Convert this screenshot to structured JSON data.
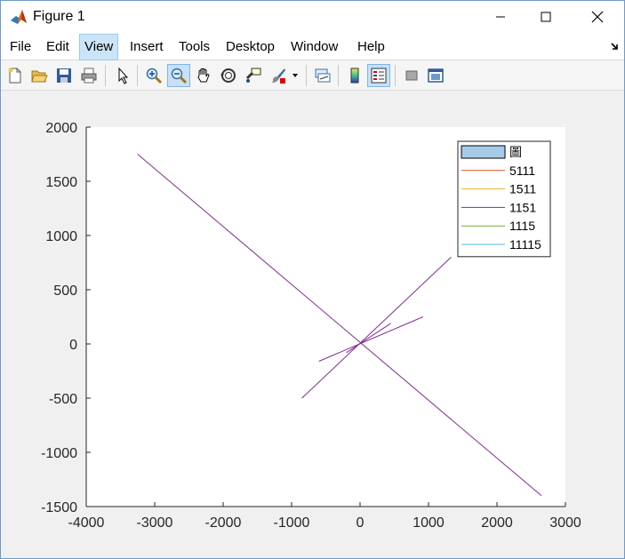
{
  "window": {
    "title": "Figure 1",
    "accent": "#6f9ac9"
  },
  "menu": {
    "items": [
      {
        "label": "File",
        "active": false
      },
      {
        "label": "Edit",
        "active": false
      },
      {
        "label": "View",
        "active": true
      },
      {
        "label": "Insert",
        "active": false
      },
      {
        "label": "Tools",
        "active": false
      },
      {
        "label": "Desktop",
        "active": false
      },
      {
        "label": "Window",
        "active": false
      },
      {
        "label": "Help",
        "active": false
      }
    ],
    "overflow_icon": "dock-arrow-icon"
  },
  "toolbar": {
    "buttons": [
      {
        "icon": "new-figure-icon",
        "on": false
      },
      {
        "icon": "open-file-icon",
        "on": false
      },
      {
        "icon": "save-icon",
        "on": false
      },
      {
        "icon": "print-icon",
        "on": false
      },
      {
        "icon": "edit-plot-icon",
        "on": false
      },
      {
        "icon": "zoom-in-icon",
        "on": false
      },
      {
        "icon": "zoom-out-icon",
        "on": true
      },
      {
        "icon": "pan-icon",
        "on": false
      },
      {
        "icon": "rotate-3d-icon",
        "on": false
      },
      {
        "icon": "data-cursor-icon",
        "on": false
      },
      {
        "icon": "brush-icon",
        "on": false
      },
      {
        "icon": "link-plot-icon",
        "on": false
      },
      {
        "icon": "colorbar-icon",
        "on": false
      },
      {
        "icon": "legend-icon",
        "on": true
      },
      {
        "icon": "hide-plot-tools-icon",
        "on": false
      },
      {
        "icon": "show-plot-tools-icon",
        "on": false
      }
    ]
  },
  "chart_data": {
    "type": "line",
    "title": "",
    "xlabel": "",
    "ylabel": "",
    "xlim": [
      -4000,
      3000
    ],
    "ylim": [
      -1500,
      2000
    ],
    "xticks": [
      "-4000",
      "-3000",
      "-2000",
      "-1000",
      "0",
      "1000",
      "2000",
      "3000"
    ],
    "yticks": [
      "2000",
      "1500",
      "1000",
      "500",
      "0",
      "-500",
      "-1000",
      "-1500"
    ],
    "grid": false,
    "legend_position": "top-right",
    "legend": [
      {
        "label": "圖",
        "kind": "patch",
        "color": "#a6cbe8"
      },
      {
        "label": "5111",
        "kind": "line",
        "color": "#d95319"
      },
      {
        "label": "1511",
        "kind": "line",
        "color": "#edb120"
      },
      {
        "label": "1151",
        "kind": "line",
        "color": "#7e2f8e"
      },
      {
        "label": "1115",
        "kind": "line",
        "color": "#77ac30"
      },
      {
        "label": "11115",
        "kind": "line",
        "color": "#4dbeee"
      }
    ],
    "series": [
      {
        "color": "#7e2f8e",
        "x": [
          -3250,
          2650
        ],
        "y": [
          1750,
          -1400
        ]
      },
      {
        "color": "#7e2f8e",
        "x": [
          -850,
          1330
        ],
        "y": [
          -500,
          800
        ]
      },
      {
        "color": "#7e2f8e",
        "x": [
          -600,
          920
        ],
        "y": [
          -160,
          250
        ]
      },
      {
        "color": "#7e2f8e",
        "x": [
          -200,
          450
        ],
        "y": [
          -80,
          190
        ]
      }
    ]
  }
}
